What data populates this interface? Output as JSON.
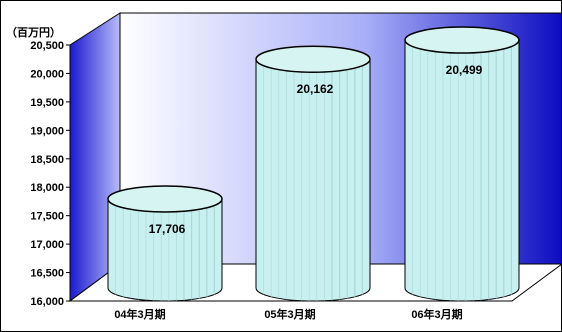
{
  "chart_data": {
    "type": "bar",
    "unit_label": "（百万円）",
    "categories": [
      "04年3月期",
      "05年3月期",
      "06年3月期"
    ],
    "values": [
      17706,
      20162,
      20499
    ],
    "data_labels": [
      "17,706",
      "20,162",
      "20,499"
    ],
    "ylim": [
      16000,
      20500
    ],
    "yticks": [
      16000,
      16500,
      17000,
      17500,
      18000,
      18500,
      19000,
      19500,
      20000,
      20500
    ],
    "ytick_labels": [
      "16,000",
      "16,500",
      "17,000",
      "17,500",
      "18,000",
      "18,500",
      "19,000",
      "19,500",
      "20,000",
      "20,500"
    ],
    "colors": {
      "bar_fill": "#c8f0f0",
      "bar_top": "#d6f4f2",
      "bar_stripe": "#a8d8d8",
      "wall_dark": "#1010b8",
      "wall_light": "#f4f4ff",
      "floor": "#ffffff"
    },
    "grid": false,
    "legend": "none"
  }
}
